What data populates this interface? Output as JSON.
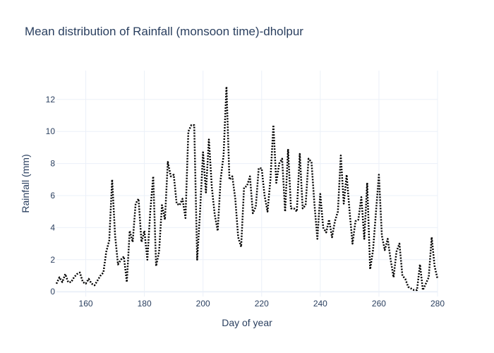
{
  "chart_data": {
    "type": "line",
    "title": "Mean distribution of Rainfall (monsoon time)-dholpur",
    "xlabel": "Day of year",
    "ylabel": "Rainfall (mm)",
    "xlim": [
      150,
      280
    ],
    "ylim": [
      -0.3,
      13.8
    ],
    "xticks": [
      160,
      180,
      200,
      220,
      240,
      260,
      280
    ],
    "yticks": [
      0,
      2,
      4,
      6,
      8,
      10,
      12
    ],
    "grid": true,
    "line_color": "#000000",
    "line_style": "dotted",
    "x": [
      150,
      151,
      152,
      153,
      154,
      155,
      156,
      157,
      158,
      159,
      160,
      161,
      162,
      163,
      164,
      165,
      166,
      167,
      168,
      169,
      170,
      171,
      172,
      173,
      174,
      175,
      176,
      177,
      178,
      179,
      180,
      181,
      182,
      183,
      184,
      185,
      186,
      187,
      188,
      189,
      190,
      191,
      192,
      193,
      194,
      195,
      196,
      197,
      198,
      199,
      200,
      201,
      202,
      203,
      204,
      205,
      206,
      207,
      208,
      209,
      210,
      211,
      212,
      213,
      214,
      215,
      216,
      217,
      218,
      219,
      220,
      221,
      222,
      223,
      224,
      225,
      226,
      227,
      228,
      229,
      230,
      231,
      232,
      233,
      234,
      235,
      236,
      237,
      238,
      239,
      240,
      241,
      242,
      243,
      244,
      245,
      246,
      247,
      248,
      249,
      250,
      251,
      252,
      253,
      254,
      255,
      256,
      257,
      258,
      259,
      260,
      261,
      262,
      263,
      264,
      265,
      266,
      267,
      268,
      269,
      270,
      271,
      272,
      273,
      274,
      275,
      276,
      277,
      278,
      279,
      280
    ],
    "values": [
      0.5,
      0.9,
      0.6,
      1.1,
      0.6,
      0.6,
      0.9,
      1.1,
      1.2,
      0.6,
      0.5,
      0.8,
      0.5,
      0.4,
      0.7,
      1.0,
      1.2,
      2.5,
      3.2,
      7.0,
      3.5,
      1.7,
      2.0,
      2.2,
      0.6,
      3.8,
      3.1,
      5.5,
      5.8,
      3.1,
      3.8,
      2.0,
      5.0,
      7.2,
      1.6,
      2.5,
      5.4,
      4.5,
      8.1,
      7.2,
      7.3,
      5.5,
      5.4,
      5.8,
      4.6,
      10.0,
      10.4,
      10.4,
      2.0,
      5.0,
      8.7,
      6.2,
      9.5,
      6.5,
      4.8,
      3.8,
      7.0,
      8.5,
      12.8,
      7.0,
      7.2,
      5.8,
      3.4,
      2.8,
      6.5,
      6.6,
      7.2,
      4.9,
      5.3,
      7.7,
      7.7,
      6.0,
      5.0,
      7.0,
      10.4,
      6.8,
      8.0,
      8.3,
      5.0,
      8.9,
      5.2,
      5.2,
      5.0,
      8.6,
      5.2,
      5.4,
      8.3,
      8.1,
      5.5,
      3.3,
      6.1,
      4.0,
      3.7,
      4.5,
      3.4,
      4.4,
      5.0,
      8.5,
      5.5,
      7.3,
      5.0,
      3.0,
      4.4,
      4.5,
      5.9,
      3.3,
      6.8,
      1.4,
      2.6,
      5.0,
      7.3,
      3.5,
      2.6,
      3.3,
      2.0,
      0.9,
      2.5,
      3.0,
      1.0,
      0.8,
      0.3,
      0.2,
      0.1,
      0.1,
      1.7,
      0.1,
      0.5,
      0.9,
      3.4,
      1.6,
      0.8
    ]
  }
}
